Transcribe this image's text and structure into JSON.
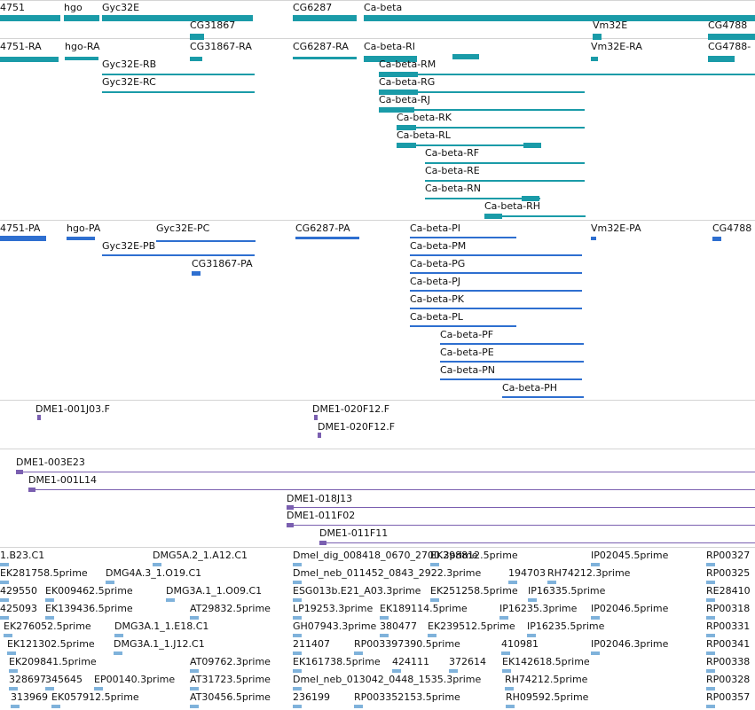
{
  "colors": {
    "gene": "#1a9ba8",
    "mrna": "#1a9ba8",
    "cds": "#2e6fd0",
    "clone": "#7a5fb0",
    "est": "#7fb2db",
    "separator": "#d4d4d4",
    "text": "#111111"
  },
  "tracks": {
    "genes": [
      "4751",
      "hgo",
      "Gyc32E",
      "CG31867",
      "CG6287",
      "Ca-beta",
      "Vm32E",
      "CG4788"
    ],
    "transcripts": [
      "4751-RA",
      "hgo-RA",
      "Gyc32E-RB",
      "Gyc32E-RC",
      "CG31867-RA",
      "CG6287-RA",
      "Ca-beta-RI",
      "Ca-beta-RM",
      "Ca-beta-RG",
      "Ca-beta-RJ",
      "Ca-beta-RK",
      "Ca-beta-RL",
      "Ca-beta-RF",
      "Ca-beta-RE",
      "Ca-beta-RN",
      "Ca-beta-RH",
      "Vm32E-RA",
      "CG4788-"
    ],
    "proteins": [
      "4751-PA",
      "hgo-PA",
      "Gyc32E-PC",
      "Gyc32E-PB",
      "CG31867-PA",
      "CG6287-PA",
      "Ca-beta-PI",
      "Ca-beta-PM",
      "Ca-beta-PG",
      "Ca-beta-PJ",
      "Ca-beta-PK",
      "Ca-beta-PL",
      "Ca-beta-PF",
      "Ca-beta-PE",
      "Ca-beta-PN",
      "Ca-beta-PH",
      "Vm32E-PA",
      "CG4788"
    ],
    "clone_ends": [
      "DME1-001J03.F",
      "DME1-020F12.F",
      "DME1-020F12.F"
    ],
    "clones": [
      "DME1-003E23",
      "DME1-001L14",
      "DME1-018J13",
      "DME1-011F02",
      "DME1-011F11"
    ],
    "ests": [
      "1.B23.C1",
      "DMG5A.2_1.A12.C1",
      "Dmel_dig_008418_0670_2700.3prime",
      "EK298812.5prime",
      "IP02045.5prime",
      "RP00327",
      "EK281758.5prime",
      "DMG4A.3_1.O19.C1",
      "Dmel_neb_011452_0843_2922.3prime",
      "194703",
      "RH74212.3prime",
      "RP00325",
      "429550",
      "EK009462.5prime",
      "DMG3A.1_1.O09.C1",
      "ESG013b.E21_A03.3prime",
      "EK251258.5prime",
      "IP16335.5prime",
      "RE28410",
      "425093",
      "EK139436.5prime",
      "AT29832.5prime",
      "LP19253.3prime",
      "EK189114.5prime",
      "IP16235.3prime",
      "IP02046.5prime",
      "RP00318",
      "EK276052.5prime",
      "DMG3A.1_1.E18.C1",
      "GH07943.3prime",
      "380477",
      "EK239512.5prime",
      "IP16235.5prime",
      "RP00331",
      "EK121302.5prime",
      "DMG3A.1_1.J12.C1",
      "211407",
      "RP003397390.5prime",
      "410981",
      "IP02046.3prime",
      "RP00341",
      "EK209841.5prime",
      "AT09762.3prime",
      "EK161738.5prime",
      "424111",
      "372614",
      "EK142618.5prime",
      "RP00338",
      "328697",
      "345645",
      "EP00140.3prime",
      "AT31723.5prime",
      "Dmel_neb_013042_0448_1535.3prime",
      "RH74212.5prime",
      "RP00328",
      "313969",
      "EK057912.5prime",
      "AT30456.5prime",
      "236199",
      "RP003352153.5prime",
      "RH09592.5prime",
      "RP00357"
    ]
  }
}
